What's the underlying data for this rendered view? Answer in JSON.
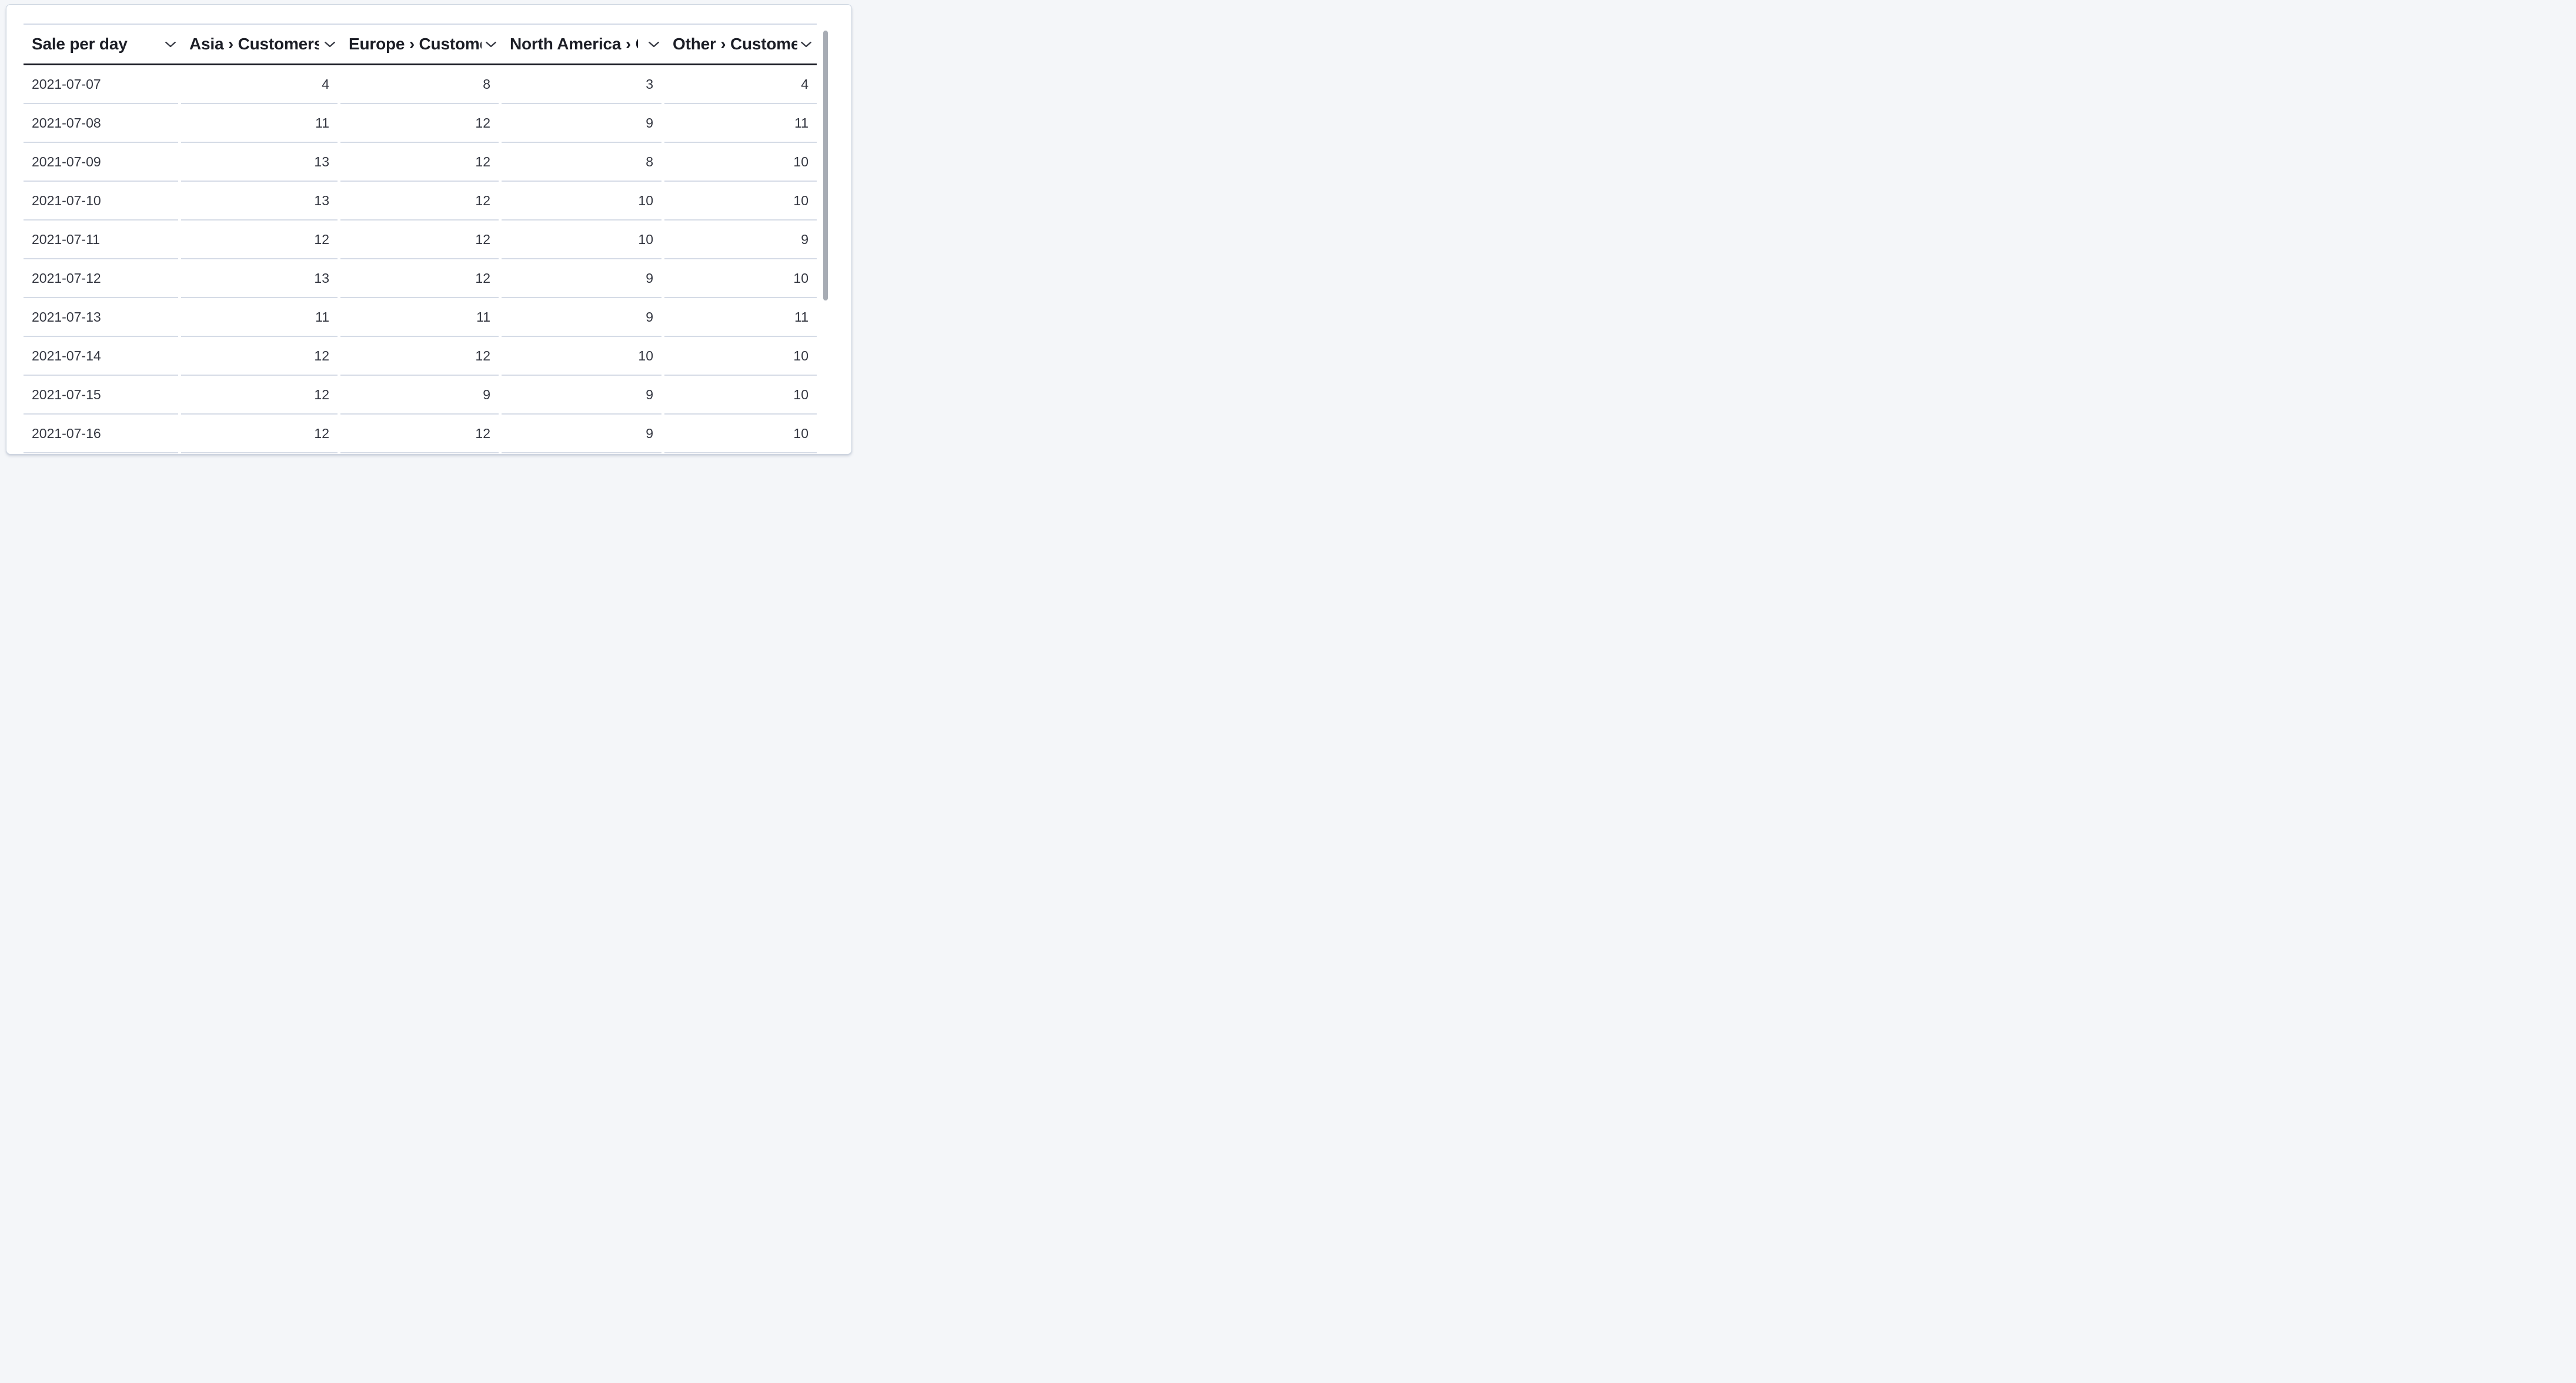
{
  "panel": {
    "type": "data-table",
    "background": "#ffffff",
    "page_background": "#f4f6f9"
  },
  "table": {
    "columns": [
      {
        "id": "date",
        "label": "Sale per day",
        "align": "left"
      },
      {
        "id": "asia",
        "label": "Asia › Customers",
        "align": "right"
      },
      {
        "id": "europe",
        "label": "Europe › Customers",
        "align": "right"
      },
      {
        "id": "north-america",
        "label": "North America › Customers",
        "align": "right"
      },
      {
        "id": "other",
        "label": "Other › Customers",
        "align": "right"
      }
    ],
    "sort_icon": "chevron-down-icon",
    "rows": [
      {
        "date": "2021-07-07",
        "values": [
          "4",
          "8",
          "3",
          "4"
        ]
      },
      {
        "date": "2021-07-08",
        "values": [
          "11",
          "12",
          "9",
          "11"
        ]
      },
      {
        "date": "2021-07-09",
        "values": [
          "13",
          "12",
          "8",
          "10"
        ]
      },
      {
        "date": "2021-07-10",
        "values": [
          "13",
          "12",
          "10",
          "10"
        ]
      },
      {
        "date": "2021-07-11",
        "values": [
          "12",
          "12",
          "10",
          "9"
        ]
      },
      {
        "date": "2021-07-12",
        "values": [
          "13",
          "12",
          "9",
          "10"
        ]
      },
      {
        "date": "2021-07-13",
        "values": [
          "11",
          "11",
          "9",
          "11"
        ]
      },
      {
        "date": "2021-07-14",
        "values": [
          "12",
          "12",
          "10",
          "10"
        ]
      },
      {
        "date": "2021-07-15",
        "values": [
          "12",
          "9",
          "9",
          "10"
        ]
      },
      {
        "date": "2021-07-16",
        "values": [
          "12",
          "12",
          "9",
          "10"
        ]
      }
    ]
  },
  "scrollbar": {
    "orientation": "vertical",
    "thumb_color": "#a7acb4"
  },
  "colors": {
    "header_text": "#1c1e26",
    "body_text": "#343741",
    "header_rule_dark": "#1b1d26",
    "row_divider": "#d5dbe6",
    "top_rule": "#d3dae6",
    "card_border": "#ccd5e0"
  }
}
